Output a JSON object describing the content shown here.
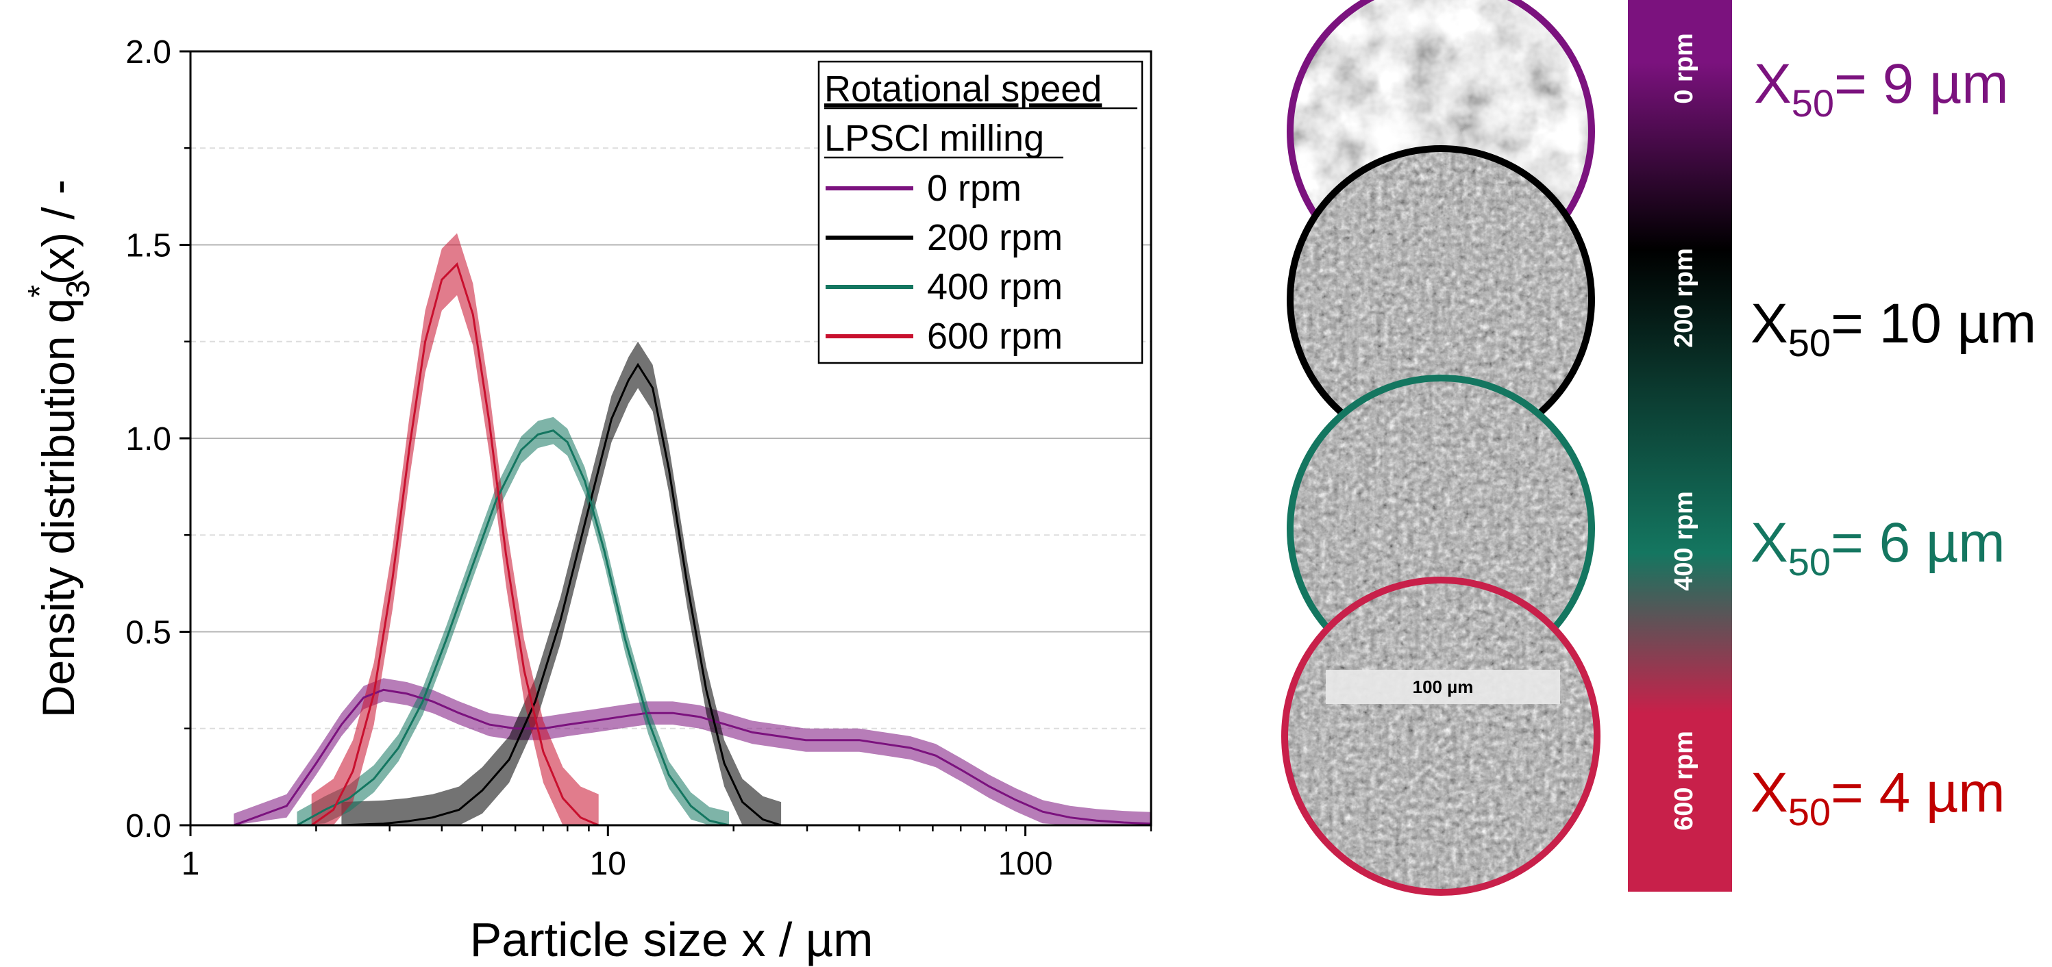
{
  "chart_data": {
    "type": "line",
    "xlabel": "Particle size x / µm",
    "ylabel_main": "Density distribution q",
    "ylabel_sub": "3",
    "ylabel_sup": "*",
    "ylabel_tail": "(x) / -",
    "x_scale": "log",
    "xlim": [
      1,
      200
    ],
    "ylim": [
      0,
      2.0
    ],
    "x_ticks": [
      1,
      10,
      100
    ],
    "x_tick_labels": [
      "1",
      "10",
      "100"
    ],
    "y_ticks": [
      0,
      0.5,
      1.0,
      1.5,
      2.0
    ],
    "y_tick_labels": [
      "0.0",
      "0.5",
      "1.0",
      "1.5",
      "2.0"
    ],
    "grid": "horizontal",
    "legend": {
      "placement": "top-right",
      "title_line1": "Rotational speed",
      "title_line2": "LPSCl milling"
    },
    "series": [
      {
        "name": "0 rpm",
        "color": "#7B127E",
        "x": [
          1.27,
          1.7,
          2.0,
          2.3,
          2.6,
          2.9,
          3.3,
          3.8,
          4.4,
          5.2,
          6.0,
          7.0,
          8.0,
          9.3,
          10.7,
          12.4,
          14.3,
          16.6,
          19.2,
          22.2,
          25.7,
          29.8,
          34.5,
          40,
          46,
          53,
          61,
          71,
          82,
          95,
          110,
          128,
          148,
          172,
          200
        ],
        "y": [
          0.0,
          0.05,
          0.16,
          0.26,
          0.33,
          0.35,
          0.34,
          0.32,
          0.29,
          0.26,
          0.25,
          0.25,
          0.26,
          0.27,
          0.28,
          0.29,
          0.29,
          0.28,
          0.26,
          0.24,
          0.23,
          0.22,
          0.22,
          0.22,
          0.21,
          0.2,
          0.18,
          0.14,
          0.1,
          0.065,
          0.035,
          0.02,
          0.012,
          0.007,
          0.004
        ],
        "band": 0.03
      },
      {
        "name": "200 rpm",
        "color": "#000000",
        "x": [
          2.3,
          2.9,
          3.3,
          3.8,
          4.4,
          5.0,
          5.8,
          6.7,
          7.7,
          8.9,
          10.2,
          11.2,
          11.8,
          12.8,
          14.0,
          15.5,
          17.2,
          19.0,
          21.0,
          23.5,
          26.0
        ],
        "y": [
          0.0,
          0.004,
          0.01,
          0.02,
          0.04,
          0.09,
          0.17,
          0.32,
          0.53,
          0.8,
          1.05,
          1.15,
          1.19,
          1.13,
          0.92,
          0.62,
          0.35,
          0.16,
          0.06,
          0.015,
          0.0
        ],
        "band": 0.06
      },
      {
        "name": "400 rpm",
        "color": "#147660",
        "x": [
          1.8,
          2.1,
          2.4,
          2.75,
          3.15,
          3.6,
          4.1,
          4.7,
          5.4,
          6.2,
          6.8,
          7.4,
          8.0,
          8.8,
          9.8,
          11.0,
          12.5,
          14.0,
          15.8,
          17.5,
          19.5
        ],
        "y": [
          0.0,
          0.04,
          0.07,
          0.12,
          0.2,
          0.32,
          0.48,
          0.66,
          0.84,
          0.97,
          1.01,
          1.02,
          0.99,
          0.89,
          0.71,
          0.48,
          0.27,
          0.13,
          0.05,
          0.012,
          0.0
        ],
        "band": 0.035
      },
      {
        "name": "600 rpm",
        "color": "#C8102E",
        "x": [
          1.95,
          2.2,
          2.45,
          2.75,
          3.05,
          3.35,
          3.65,
          4.0,
          4.35,
          4.75,
          5.2,
          5.7,
          6.3,
          7.0,
          7.8,
          8.6,
          9.5
        ],
        "y": [
          0.0,
          0.04,
          0.14,
          0.34,
          0.64,
          0.98,
          1.25,
          1.41,
          1.45,
          1.32,
          1.04,
          0.7,
          0.4,
          0.19,
          0.07,
          0.02,
          0.0
        ],
        "band": 0.08
      }
    ]
  },
  "sem_panel": {
    "scale_bar_label": "100 µm",
    "images": [
      {
        "label": "0 rpm",
        "ring_color": "#7B127E",
        "texture": "coarse"
      },
      {
        "label": "200 rpm",
        "ring_color": "#000000",
        "texture": "fine"
      },
      {
        "label": "400 rpm",
        "ring_color": "#147660",
        "texture": "fine"
      },
      {
        "label": "600 rpm",
        "ring_color": "#C8102E",
        "texture": "fine"
      }
    ]
  },
  "color_scale": {
    "stops": [
      "#7B127E",
      "#000000",
      "#0F5E4C",
      "#147660",
      "#C8204A"
    ],
    "labels": [
      "0 rpm",
      "200 rpm",
      "400 rpm",
      "600 rpm"
    ]
  },
  "x50_labels": [
    {
      "prefix": "X",
      "sub": "50",
      "suffix": "= 9 µm",
      "color": "#7B127E"
    },
    {
      "prefix": "X",
      "sub": "50",
      "suffix": "= 10 µm",
      "color": "#000000"
    },
    {
      "prefix": "X",
      "sub": "50",
      "suffix": "= 6 µm",
      "color": "#147660"
    },
    {
      "prefix": "X",
      "sub": "50",
      "suffix": "= 4 µm",
      "color": "#C00000"
    }
  ]
}
